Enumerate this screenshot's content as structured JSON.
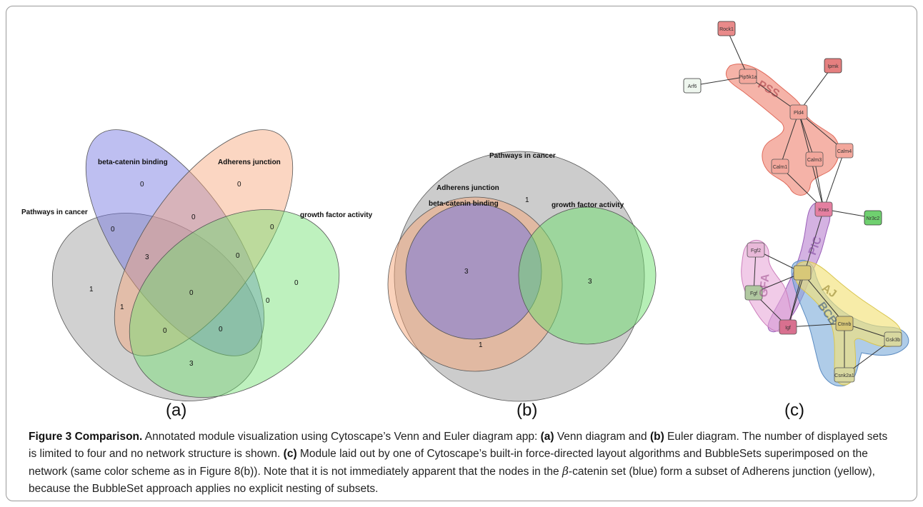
{
  "figure": {
    "panel_a": {
      "label": "(a)",
      "type": "venn",
      "sets": [
        "Pathways in cancer",
        "beta-catenin binding",
        "Adherens junction",
        "growth factor activity"
      ],
      "counts": [
        "1",
        "0",
        "0",
        "0",
        "0",
        "0",
        "3",
        "1",
        "0",
        "0",
        "0",
        "0",
        "0",
        "0",
        "3"
      ]
    },
    "panel_b": {
      "label": "(b)",
      "type": "euler",
      "sets": [
        "Pathways in cancer",
        "Adherens junction",
        "beta-catenin binding",
        "growth factor activity"
      ],
      "counts": [
        "1",
        "3",
        "3",
        "1"
      ]
    },
    "panel_c": {
      "label": "(c)",
      "nodes": [
        "Rock1",
        "Ipmk",
        "Arf6",
        "Pip5k1a",
        "Pld4",
        "Calm1",
        "Calm3",
        "Calm4",
        "Kras",
        "Nr3c2",
        "Fgf2",
        "Fgf",
        "Igf",
        "Ctnnb",
        "Csnk2a1",
        "Gsk3b"
      ],
      "bubble_sets": [
        "PSS",
        "PIC",
        "GFA",
        "AJ",
        "BCB"
      ]
    }
  },
  "caption": {
    "title": "Figure 3 Comparison.",
    "seg1": " Annotated module visualization using Cytoscape’s Venn and Euler diagram app: ",
    "a": "(a)",
    "seg2": " Venn diagram and ",
    "b": "(b)",
    "seg3": " Euler diagram. The number of displayed sets is limited to four and no network structure is shown. ",
    "c": "(c)",
    "seg4": " Module laid out by one of Cytoscape’s built-in force-directed layout algorithms and BubbleSets superimposed on the network (same color scheme as in Figure 8(b)). Note that it is not immediately apparent that the nodes in the ",
    "beta": "β",
    "seg5": "-catenin set (blue) form a subset of Adherens junction (yellow), because the BubbleSet approach applies no explicit nesting of subsets."
  }
}
